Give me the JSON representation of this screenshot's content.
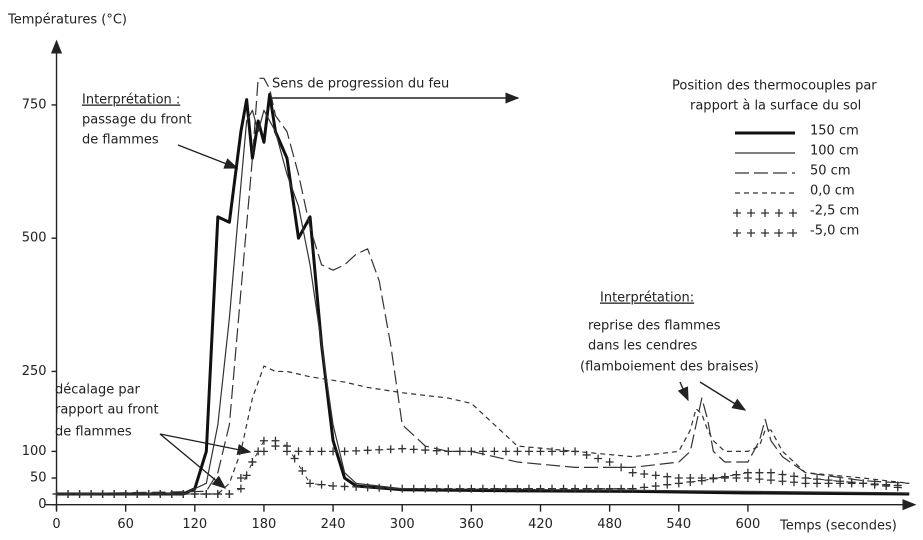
{
  "chart_data": {
    "type": "line",
    "ylabel": "Températures (°C)",
    "xlabel": "Temps (secondes)",
    "xlim": [
      -10,
      745
    ],
    "ylim": [
      -10,
      870
    ],
    "xticks": [
      0,
      60,
      120,
      180,
      240,
      300,
      360,
      420,
      480,
      540,
      600
    ],
    "yticks": [
      0,
      50,
      100,
      250,
      500,
      750
    ],
    "legend_title": [
      "Position des thermocouples par",
      "rapport à la surface du sol"
    ],
    "annotations": {
      "front": [
        "Interprétation :",
        "passage du front",
        "de flammes"
      ],
      "direction": "Sens de progression du feu",
      "reprise": [
        "Interprétation:",
        "reprise des flammes",
        "dans les cendres",
        "(flamboiement des braises)"
      ],
      "decalage": [
        "décalage par",
        "rapport au front",
        "de flammes"
      ]
    },
    "series": [
      {
        "name": "150 cm",
        "color": "#111",
        "dash": "solid-thick",
        "x": [
          0,
          110,
          120,
          130,
          140,
          150,
          160,
          165,
          170,
          175,
          180,
          185,
          190,
          200,
          210,
          220,
          230,
          240,
          250,
          260,
          300,
          400,
          500,
          600,
          740
        ],
        "values": [
          20,
          20,
          30,
          100,
          540,
          530,
          700,
          760,
          650,
          720,
          680,
          770,
          700,
          650,
          500,
          540,
          300,
          120,
          50,
          35,
          28,
          26,
          25,
          22,
          20
        ]
      },
      {
        "name": "100 cm",
        "color": "#333",
        "dash": "solid",
        "x": [
          0,
          110,
          130,
          140,
          150,
          160,
          165,
          170,
          175,
          180,
          185,
          190,
          200,
          210,
          220,
          230,
          240,
          250,
          260,
          300,
          500,
          740
        ],
        "values": [
          20,
          20,
          40,
          150,
          350,
          600,
          720,
          740,
          700,
          740,
          720,
          700,
          620,
          560,
          450,
          300,
          150,
          60,
          40,
          30,
          27,
          22
        ]
      },
      {
        "name": "50  cm",
        "color": "#333",
        "dash": "long",
        "x": [
          0,
          130,
          140,
          150,
          160,
          170,
          175,
          180,
          185,
          190,
          200,
          210,
          220,
          230,
          240,
          250,
          260,
          270,
          280,
          290,
          300,
          320,
          340,
          360,
          380,
          400,
          450,
          500,
          540,
          550,
          555,
          560,
          565,
          570,
          580,
          600,
          610,
          615,
          620,
          630,
          650,
          700,
          740
        ],
        "values": [
          20,
          25,
          60,
          150,
          400,
          650,
          800,
          800,
          780,
          730,
          700,
          620,
          520,
          450,
          440,
          450,
          470,
          480,
          420,
          300,
          150,
          110,
          100,
          100,
          90,
          80,
          70,
          70,
          80,
          100,
          150,
          200,
          160,
          100,
          80,
          80,
          120,
          160,
          120,
          90,
          60,
          45,
          40
        ]
      },
      {
        "name": "0,0 cm",
        "color": "#333",
        "dash": "short",
        "x": [
          0,
          140,
          150,
          160,
          170,
          180,
          190,
          200,
          220,
          250,
          270,
          300,
          340,
          360,
          380,
          400,
          450,
          500,
          540,
          550,
          555,
          560,
          565,
          570,
          580,
          600,
          610,
          615,
          620,
          630,
          650,
          700,
          740
        ],
        "values": [
          20,
          20,
          40,
          100,
          200,
          260,
          250,
          250,
          240,
          230,
          220,
          210,
          200,
          190,
          150,
          110,
          100,
          90,
          100,
          140,
          180,
          170,
          140,
          120,
          100,
          100,
          110,
          140,
          140,
          100,
          60,
          50,
          40
        ]
      },
      {
        "name": "-2,5 cm",
        "color": "#333",
        "dash": "plus",
        "x": [
          0,
          150,
          160,
          170,
          180,
          190,
          200,
          220,
          250,
          300,
          340,
          400,
          450,
          480,
          500,
          540,
          600,
          650,
          700,
          740
        ],
        "values": [
          20,
          20,
          50,
          80,
          100,
          110,
          100,
          100,
          100,
          105,
          100,
          100,
          100,
          80,
          60,
          50,
          50,
          40,
          40,
          35
        ]
      },
      {
        "name": "-5,0 cm",
        "color": "#333",
        "dash": "plusdash",
        "x": [
          0,
          150,
          160,
          170,
          180,
          190,
          200,
          220,
          240,
          300,
          400,
          500,
          540,
          560,
          600,
          620,
          650,
          700,
          740
        ],
        "values": [
          20,
          20,
          30,
          80,
          120,
          120,
          110,
          40,
          35,
          30,
          30,
          30,
          40,
          45,
          60,
          60,
          50,
          40,
          30
        ]
      }
    ]
  }
}
